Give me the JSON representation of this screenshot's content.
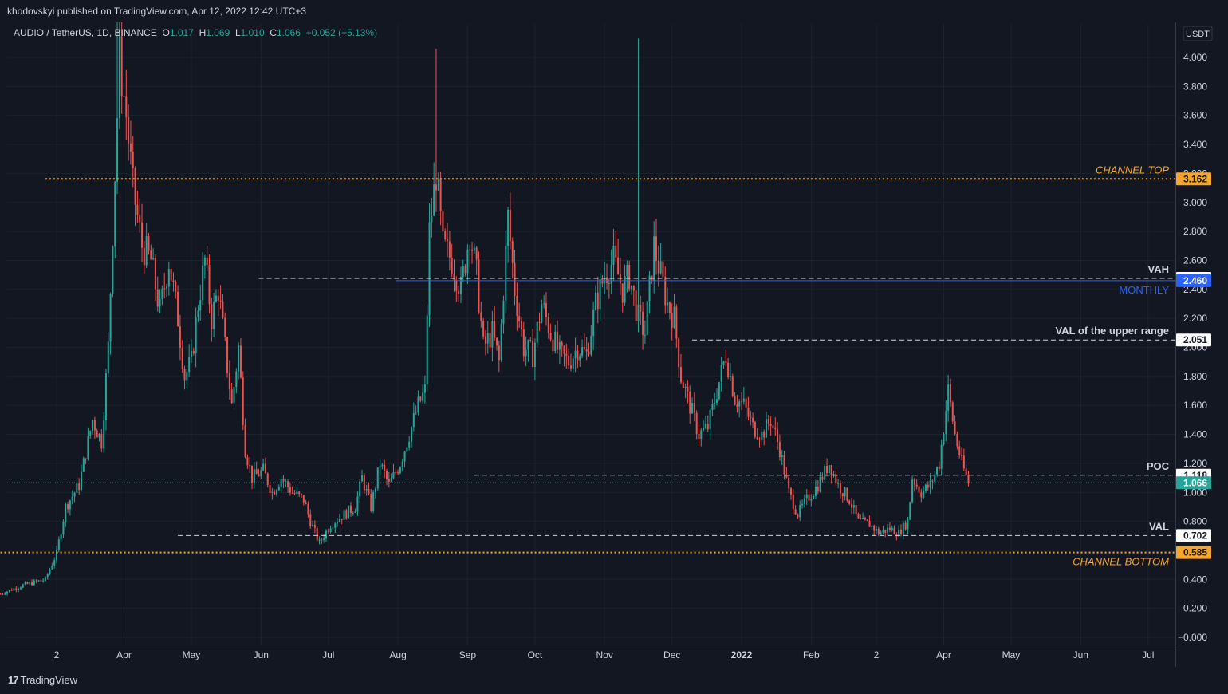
{
  "header": {
    "publisher": "khodovskyi published on TradingView.com, Apr 12, 2022 12:42 UTC+3"
  },
  "legend": {
    "symbol": "AUDIO / TetherUS, 1D, BINANCE",
    "o_label": "O",
    "o_value": "1.017",
    "h_label": "H",
    "h_value": "1.069",
    "l_label": "L",
    "l_value": "1.010",
    "c_label": "C",
    "c_value": "1.066",
    "change": "+0.052 (+5.13%)"
  },
  "footer": {
    "logo_mark": "17",
    "logo_text": "TradingView"
  },
  "colors": {
    "background": "#131722",
    "up": "#26a69a",
    "down": "#ef5350",
    "grid": "#1e222d",
    "orange": "#f7a62c",
    "blue": "#2962ff",
    "text": "#d1d4dc"
  },
  "chart_data": {
    "type": "candlestick",
    "title": "AUDIO / TetherUS, 1D, BINANCE",
    "currency": "USDT",
    "ylim": [
      -0.06,
      4.38
    ],
    "y_ticks": [
      "4.000",
      "3.800",
      "3.600",
      "3.400",
      "3.200",
      "3.000",
      "2.800",
      "2.600",
      "2.400",
      "2.200",
      "2.000",
      "1.800",
      "1.600",
      "1.400",
      "1.200",
      "1.000",
      "0.800",
      "0.600",
      "0.400",
      "0.200",
      "−0.000"
    ],
    "x_range": [
      "2021-02-05",
      "2022-07-31"
    ],
    "x_ticks": [
      {
        "label": "2",
        "date": "2021-03-02"
      },
      {
        "label": "Apr",
        "date": "2021-04-01"
      },
      {
        "label": "May",
        "date": "2021-05-01"
      },
      {
        "label": "Jun",
        "date": "2021-06-01"
      },
      {
        "label": "Jul",
        "date": "2021-07-01"
      },
      {
        "label": "Aug",
        "date": "2021-08-01"
      },
      {
        "label": "Sep",
        "date": "2021-09-01"
      },
      {
        "label": "Oct",
        "date": "2021-10-01"
      },
      {
        "label": "Nov",
        "date": "2021-11-01"
      },
      {
        "label": "Dec",
        "date": "2021-12-01"
      },
      {
        "label": "2022",
        "date": "2022-01-01"
      },
      {
        "label": "Feb",
        "date": "2022-02-01"
      },
      {
        "label": "2",
        "date": "2022-03-02"
      },
      {
        "label": "Apr",
        "date": "2022-04-01"
      },
      {
        "label": "May",
        "date": "2022-05-01"
      },
      {
        "label": "Jun",
        "date": "2022-06-01"
      },
      {
        "label": "Jul",
        "date": "2022-07-01"
      }
    ],
    "price_path": [
      [
        "2021-02-05",
        0.3
      ],
      [
        "2021-02-15",
        0.36
      ],
      [
        "2021-02-25",
        0.4
      ],
      [
        "2021-03-02",
        0.58
      ],
      [
        "2021-03-06",
        0.9
      ],
      [
        "2021-03-12",
        1.05
      ],
      [
        "2021-03-18",
        1.5
      ],
      [
        "2021-03-22",
        1.35
      ],
      [
        "2021-03-25",
        2.0
      ],
      [
        "2021-03-28",
        3.2
      ],
      [
        "2021-03-30",
        4.0
      ],
      [
        "2021-04-02",
        3.6
      ],
      [
        "2021-04-05",
        3.1
      ],
      [
        "2021-04-09",
        2.7
      ],
      [
        "2021-04-13",
        2.6
      ],
      [
        "2021-04-17",
        2.25
      ],
      [
        "2021-04-21",
        2.6
      ],
      [
        "2021-04-25",
        2.2
      ],
      [
        "2021-04-28",
        1.8
      ],
      [
        "2021-05-01",
        1.9
      ],
      [
        "2021-05-04",
        2.3
      ],
      [
        "2021-05-07",
        2.6
      ],
      [
        "2021-05-10",
        2.2
      ],
      [
        "2021-05-13",
        2.4
      ],
      [
        "2021-05-16",
        2.0
      ],
      [
        "2021-05-19",
        1.6
      ],
      [
        "2021-05-22",
        2.0
      ],
      [
        "2021-05-25",
        1.3
      ],
      [
        "2021-05-28",
        1.1
      ],
      [
        "2021-06-02",
        1.15
      ],
      [
        "2021-06-06",
        1.0
      ],
      [
        "2021-06-10",
        1.1
      ],
      [
        "2021-06-15",
        1.0
      ],
      [
        "2021-06-20",
        0.95
      ],
      [
        "2021-06-23",
        0.8
      ],
      [
        "2021-06-27",
        0.65
      ],
      [
        "2021-07-02",
        0.78
      ],
      [
        "2021-07-08",
        0.85
      ],
      [
        "2021-07-13",
        0.9
      ],
      [
        "2021-07-16",
        1.1
      ],
      [
        "2021-07-20",
        0.9
      ],
      [
        "2021-07-24",
        1.2
      ],
      [
        "2021-07-28",
        1.05
      ],
      [
        "2021-08-02",
        1.2
      ],
      [
        "2021-08-06",
        1.4
      ],
      [
        "2021-08-10",
        1.6
      ],
      [
        "2021-08-13",
        1.7
      ],
      [
        "2021-08-15",
        2.8
      ],
      [
        "2021-08-18",
        3.2
      ],
      [
        "2021-08-21",
        2.7
      ],
      [
        "2021-08-25",
        2.6
      ],
      [
        "2021-08-29",
        2.4
      ],
      [
        "2021-09-02",
        2.8
      ],
      [
        "2021-09-05",
        2.5
      ],
      [
        "2021-09-08",
        2.0
      ],
      [
        "2021-09-12",
        2.1
      ],
      [
        "2021-09-15",
        1.9
      ],
      [
        "2021-09-19",
        2.9
      ],
      [
        "2021-09-22",
        2.4
      ],
      [
        "2021-09-26",
        2.0
      ],
      [
        "2021-09-30",
        1.95
      ],
      [
        "2021-10-04",
        2.3
      ],
      [
        "2021-10-08",
        2.1
      ],
      [
        "2021-10-12",
        1.95
      ],
      [
        "2021-10-16",
        1.9
      ],
      [
        "2021-10-20",
        2.0
      ],
      [
        "2021-10-24",
        1.95
      ],
      [
        "2021-10-28",
        2.3
      ],
      [
        "2021-11-01",
        2.5
      ],
      [
        "2021-11-05",
        2.6
      ],
      [
        "2021-11-09",
        2.4
      ],
      [
        "2021-11-12",
        2.5
      ],
      [
        "2021-11-16",
        2.2
      ],
      [
        "2021-11-19",
        2.1
      ],
      [
        "2021-11-23",
        2.7
      ],
      [
        "2021-11-26",
        2.5
      ],
      [
        "2021-11-29",
        2.3
      ],
      [
        "2021-12-02",
        2.2
      ],
      [
        "2021-12-05",
        1.8
      ],
      [
        "2021-12-09",
        1.6
      ],
      [
        "2021-12-13",
        1.4
      ],
      [
        "2021-12-17",
        1.45
      ],
      [
        "2021-12-21",
        1.7
      ],
      [
        "2021-12-25",
        1.95
      ],
      [
        "2021-12-29",
        1.65
      ],
      [
        "2022-01-02",
        1.6
      ],
      [
        "2022-01-06",
        1.45
      ],
      [
        "2022-01-10",
        1.4
      ],
      [
        "2022-01-14",
        1.5
      ],
      [
        "2022-01-18",
        1.3
      ],
      [
        "2022-01-22",
        1.0
      ],
      [
        "2022-01-26",
        0.85
      ],
      [
        "2022-01-30",
        0.95
      ],
      [
        "2022-02-04",
        1.05
      ],
      [
        "2022-02-09",
        1.2
      ],
      [
        "2022-02-13",
        1.05
      ],
      [
        "2022-02-18",
        0.95
      ],
      [
        "2022-02-22",
        0.8
      ],
      [
        "2022-02-27",
        0.78
      ],
      [
        "2022-03-03",
        0.72
      ],
      [
        "2022-03-08",
        0.75
      ],
      [
        "2022-03-12",
        0.72
      ],
      [
        "2022-03-16",
        0.8
      ],
      [
        "2022-03-18",
        1.1
      ],
      [
        "2022-03-22",
        1.0
      ],
      [
        "2022-03-26",
        1.05
      ],
      [
        "2022-03-30",
        1.2
      ],
      [
        "2022-04-03",
        1.7
      ],
      [
        "2022-04-06",
        1.4
      ],
      [
        "2022-04-09",
        1.2
      ],
      [
        "2022-04-12",
        1.066
      ]
    ],
    "wicks": [
      {
        "date": "2021-03-29",
        "high": 4.38
      },
      {
        "date": "2021-08-18",
        "high": 4.06
      },
      {
        "date": "2021-11-16",
        "high": 4.13
      },
      {
        "date": "2022-04-03",
        "high": 1.81
      }
    ],
    "levels": [
      {
        "label": "CHANNEL TOP",
        "value": 3.162,
        "price_label": "3.162",
        "style": "dotted",
        "color": "orange",
        "start": "2021-02-25"
      },
      {
        "label": "VAH",
        "value": 2.476,
        "price_label": "2.476",
        "style": "dashed",
        "color": "white",
        "start": "2021-05-31"
      },
      {
        "label": "MONTHLY",
        "value": 2.46,
        "price_label": "2.460",
        "style": "solid",
        "color": "blue",
        "start": "2021-07-31"
      },
      {
        "label": "VAL of the upper range",
        "value": 2.051,
        "price_label": "2.051",
        "style": "dashed",
        "color": "white",
        "start": "2021-12-10"
      },
      {
        "label": "POC",
        "value": 1.118,
        "price_label": "1.118",
        "style": "dashed",
        "color": "white",
        "start": "2021-09-04"
      },
      {
        "label": "VAL",
        "value": 0.702,
        "price_label": "0.702",
        "style": "dashed",
        "color": "white",
        "start": "2021-04-25"
      },
      {
        "label": "CHANNEL BOTTOM",
        "value": 0.585,
        "price_label": "0.585",
        "style": "dotted",
        "color": "orange",
        "start": "2021-02-05"
      }
    ],
    "last_price": {
      "value": 1.066,
      "price_label": "1.066"
    }
  }
}
